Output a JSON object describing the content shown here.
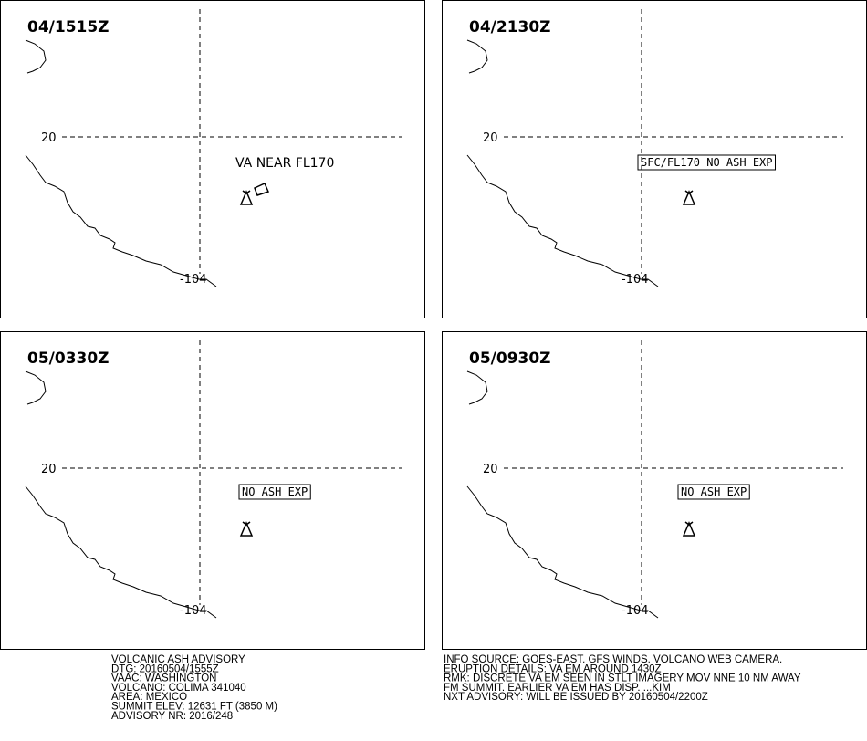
{
  "panels": [
    {
      "time": "04/1515Z",
      "lat_label": "20",
      "lon_label": "-104",
      "annotation": "VA NEAR FL170"
    },
    {
      "time": "04/2130Z",
      "lat_label": "20",
      "lon_label": "-104",
      "annotation": "SFC/FL170 NO ASH EXP"
    },
    {
      "time": "05/0330Z",
      "lat_label": "20",
      "lon_label": "-104",
      "annotation": "NO ASH EXP"
    },
    {
      "time": "05/0930Z",
      "lat_label": "20",
      "lon_label": "-104",
      "annotation": "NO ASH EXP"
    }
  ],
  "footer": {
    "left_lines": [
      "VOLCANIC ASH ADVISORY",
      "DTG: 20160504/1555Z",
      "VAAC: WASHINGTON",
      "VOLCANO: COLIMA 341040",
      "AREA: MEXICO",
      "SUMMIT ELEV: 12631 FT (3850 M)",
      "ADVISORY NR: 2016/248"
    ],
    "right_lines": [
      "INFO SOURCE: GOES-EAST. GFS WINDS. VOLCANO WEB CAMERA.",
      "ERUPTION DETAILS: VA EM AROUND 1430Z",
      "RMK: DISCRETE VA EM SEEN IN STLT IMAGERY MOV NNE 10 NM AWAY",
      "FM SUMMIT. EARLIER VA EM HAS DISP. ...KIM",
      "NXT ADVISORY: WILL BE ISSUED BY 20160504/2200Z"
    ]
  }
}
